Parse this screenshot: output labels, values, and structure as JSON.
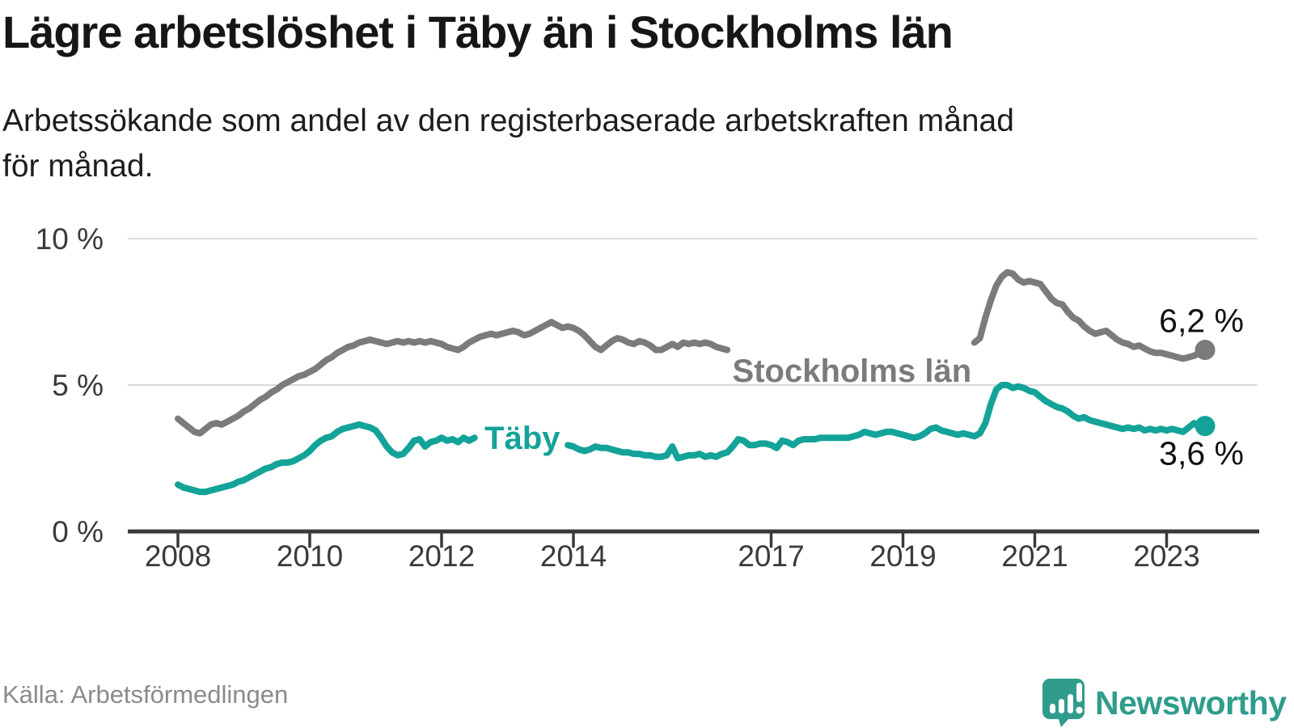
{
  "header": {
    "title": "Lägre arbetslöshet i Täby än i Stockholms län",
    "subtitle_line1": "Arbetssökande som andel av den registerbaserade arbetskraften månad",
    "subtitle_line2": "för månad."
  },
  "footer": {
    "source": "Källa: Arbetsförmedlingen",
    "brand_name": "Newsworthy"
  },
  "colors": {
    "stockholm_line": "#7b7b7b",
    "taby_line": "#14a398",
    "annotation_text": "#111111",
    "gridline": "#dadada",
    "axis": "#3a3a3a",
    "brand_teal": "#2f9c8c"
  },
  "chart_data": {
    "type": "line",
    "title": "Lägre arbetslöshet i Täby än i Stockholms län",
    "x_start_year": 2008,
    "x_interval_months": 1,
    "x_ticks": [
      2008,
      2010,
      2012,
      2014,
      2017,
      2019,
      2021,
      2023
    ],
    "y_ticks": [
      {
        "value": 0,
        "label": "0 %"
      },
      {
        "value": 5,
        "label": "5 %"
      },
      {
        "value": 10,
        "label": "10 %"
      }
    ],
    "ylim": [
      0,
      10.5
    ],
    "grid": true,
    "legend_position": "inline-labels",
    "series": [
      {
        "name": "Stockholms län",
        "end_label": "6,2 %",
        "end_value": 6.2,
        "label_gap_years": [
          2016.4,
          2020.05
        ],
        "values": [
          3.85,
          3.7,
          3.55,
          3.4,
          3.35,
          3.5,
          3.65,
          3.7,
          3.65,
          3.75,
          3.85,
          3.95,
          4.1,
          4.2,
          4.35,
          4.5,
          4.6,
          4.75,
          4.85,
          5.0,
          5.1,
          5.2,
          5.3,
          5.35,
          5.45,
          5.55,
          5.7,
          5.85,
          5.95,
          6.1,
          6.2,
          6.3,
          6.35,
          6.45,
          6.5,
          6.55,
          6.5,
          6.45,
          6.4,
          6.45,
          6.5,
          6.45,
          6.5,
          6.45,
          6.5,
          6.45,
          6.5,
          6.45,
          6.4,
          6.3,
          6.25,
          6.2,
          6.3,
          6.45,
          6.55,
          6.65,
          6.7,
          6.75,
          6.7,
          6.75,
          6.8,
          6.85,
          6.8,
          6.7,
          6.75,
          6.85,
          6.95,
          7.05,
          7.15,
          7.05,
          6.95,
          7.0,
          6.95,
          6.85,
          6.7,
          6.5,
          6.3,
          6.2,
          6.35,
          6.5,
          6.6,
          6.55,
          6.45,
          6.4,
          6.5,
          6.45,
          6.35,
          6.2,
          6.2,
          6.3,
          6.4,
          6.3,
          6.45,
          6.4,
          6.45,
          6.4,
          6.45,
          6.4,
          6.3,
          6.25,
          6.2,
          6.1,
          6.2,
          6.15,
          6.1,
          6.05,
          6.0,
          5.95,
          5.9,
          5.85,
          5.8,
          5.75,
          5.7,
          5.75,
          5.85,
          5.8,
          5.75,
          5.7,
          5.65,
          5.65,
          5.65,
          5.6,
          5.55,
          5.5,
          5.5,
          5.6,
          5.7,
          5.65,
          5.6,
          5.65,
          5.7,
          5.75,
          5.8,
          5.85,
          5.9,
          5.9,
          5.95,
          6.0,
          6.1,
          6.15,
          6.2,
          6.25,
          6.3,
          6.35,
          6.4,
          6.45,
          6.6,
          7.3,
          7.9,
          8.4,
          8.7,
          8.85,
          8.8,
          8.6,
          8.5,
          8.55,
          8.5,
          8.45,
          8.2,
          7.95,
          7.8,
          7.75,
          7.5,
          7.3,
          7.2,
          7.0,
          6.85,
          6.75,
          6.8,
          6.85,
          6.7,
          6.55,
          6.45,
          6.4,
          6.3,
          6.35,
          6.25,
          6.15,
          6.1,
          6.1,
          6.05,
          6.0,
          5.95,
          5.9,
          5.95,
          6.0,
          6.1,
          6.2
        ]
      },
      {
        "name": "Täby",
        "end_label": "3,6 %",
        "end_value": 3.6,
        "label_gap_years": [
          2012.55,
          2013.9
        ],
        "values": [
          1.6,
          1.5,
          1.45,
          1.4,
          1.35,
          1.35,
          1.4,
          1.45,
          1.5,
          1.55,
          1.6,
          1.7,
          1.75,
          1.85,
          1.95,
          2.05,
          2.15,
          2.2,
          2.3,
          2.35,
          2.35,
          2.4,
          2.5,
          2.6,
          2.75,
          2.95,
          3.1,
          3.2,
          3.25,
          3.4,
          3.5,
          3.55,
          3.6,
          3.65,
          3.6,
          3.55,
          3.45,
          3.2,
          2.9,
          2.7,
          2.6,
          2.65,
          2.85,
          3.1,
          3.15,
          2.9,
          3.05,
          3.1,
          3.2,
          3.1,
          3.15,
          3.05,
          3.2,
          3.1,
          3.2,
          3.15,
          3.25,
          3.2,
          3.3,
          3.25,
          3.3,
          3.25,
          3.3,
          3.2,
          3.3,
          3.25,
          3.3,
          3.2,
          3.25,
          3.15,
          3.05,
          2.95,
          2.9,
          2.8,
          2.75,
          2.8,
          2.9,
          2.85,
          2.85,
          2.8,
          2.75,
          2.7,
          2.7,
          2.65,
          2.65,
          2.6,
          2.6,
          2.55,
          2.55,
          2.6,
          2.9,
          2.5,
          2.55,
          2.6,
          2.6,
          2.65,
          2.55,
          2.6,
          2.55,
          2.65,
          2.7,
          2.9,
          3.15,
          3.1,
          2.95,
          2.95,
          3.0,
          3.0,
          2.95,
          2.85,
          3.1,
          3.05,
          2.95,
          3.1,
          3.15,
          3.15,
          3.15,
          3.2,
          3.2,
          3.2,
          3.2,
          3.2,
          3.2,
          3.25,
          3.3,
          3.4,
          3.35,
          3.3,
          3.35,
          3.4,
          3.4,
          3.35,
          3.3,
          3.25,
          3.2,
          3.25,
          3.35,
          3.5,
          3.55,
          3.45,
          3.4,
          3.35,
          3.3,
          3.35,
          3.3,
          3.25,
          3.35,
          3.7,
          4.35,
          4.85,
          5.0,
          5.0,
          4.9,
          4.95,
          4.9,
          4.8,
          4.75,
          4.6,
          4.45,
          4.35,
          4.25,
          4.2,
          4.1,
          3.95,
          3.85,
          3.9,
          3.8,
          3.75,
          3.7,
          3.65,
          3.6,
          3.55,
          3.5,
          3.55,
          3.5,
          3.55,
          3.45,
          3.5,
          3.45,
          3.5,
          3.45,
          3.5,
          3.45,
          3.4,
          3.55,
          3.7,
          3.55,
          3.6
        ]
      }
    ]
  }
}
